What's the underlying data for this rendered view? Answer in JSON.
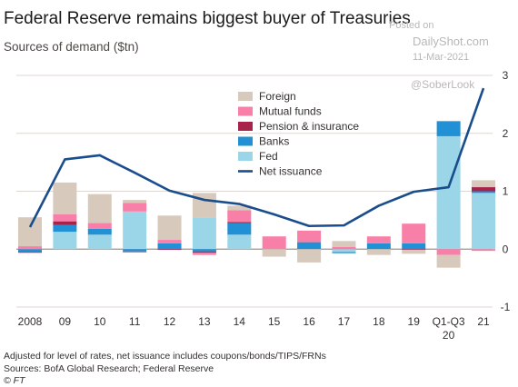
{
  "title": "Federal Reserve remains biggest buyer of Treasuries",
  "subtitle": "Sources of demand ($tn)",
  "watermark": {
    "posted_on": "Posted on",
    "site": "DailyShot.com",
    "date": "11-Mar-2021",
    "handle": "@SoberLook"
  },
  "footnotes": {
    "adjust": "Adjusted for level of rates, net issuance includes coupons/bonds/TIPS/FRNs",
    "sources": "Sources: BofA Global Research; Federal Reserve",
    "credit": "© FT"
  },
  "colors": {
    "Foreign": "#d8c9bd",
    "Mutual funds": "#f77fa8",
    "Pension & insurance": "#a8234c",
    "Banks": "#2190d4",
    "Fed": "#9bd5e8",
    "Net issuance": "#1a4d8c"
  },
  "chart_data": {
    "type": "bar",
    "stacked": true,
    "categories": [
      "2008",
      "09",
      "10",
      "11",
      "12",
      "13",
      "14",
      "15",
      "16",
      "17",
      "18",
      "19",
      "Q1-Q3\n20",
      "21"
    ],
    "tick_labels": [
      [
        "2008"
      ],
      [
        "09"
      ],
      [
        "10"
      ],
      [
        "11"
      ],
      [
        "12"
      ],
      [
        "13"
      ],
      [
        "14"
      ],
      [
        "15"
      ],
      [
        "16"
      ],
      [
        "17"
      ],
      [
        "18"
      ],
      [
        "19"
      ],
      [
        "Q1-Q3",
        "20"
      ],
      [
        "21"
      ]
    ],
    "series": [
      {
        "name": "Fed",
        "values": [
          0,
          0.3,
          0.25,
          0.65,
          0,
          0.55,
          0.25,
          0,
          0,
          -0.05,
          0,
          0,
          1.95,
          0.97
        ]
      },
      {
        "name": "Banks",
        "values": [
          -0.05,
          0.12,
          0.1,
          -0.04,
          0.1,
          -0.04,
          0.2,
          0,
          0.12,
          -0.02,
          0.1,
          0.1,
          0.26,
          0.03
        ]
      },
      {
        "name": "Pension & insurance",
        "values": [
          -0.01,
          0.06,
          0,
          -0.01,
          -0.01,
          -0.02,
          0.02,
          0,
          0,
          0,
          0,
          -0.01,
          0,
          0.07
        ]
      },
      {
        "name": "Mutual funds",
        "values": [
          0.05,
          0.12,
          0.1,
          0.15,
          0.06,
          -0.04,
          0.2,
          0.22,
          0.2,
          0.04,
          0.12,
          0.34,
          -0.1,
          -0.03
        ]
      },
      {
        "name": "Foreign",
        "values": [
          0.5,
          0.55,
          0.5,
          0.05,
          0.42,
          0.42,
          0.08,
          -0.13,
          -0.23,
          0.1,
          -0.1,
          -0.07,
          -0.22,
          0.12
        ]
      }
    ],
    "line": {
      "name": "Net issuance",
      "values": [
        0.38,
        1.55,
        1.62,
        1.32,
        1.01,
        0.85,
        0.78,
        0.6,
        0.4,
        0.41,
        0.75,
        0.99,
        1.07,
        2.78
      ]
    },
    "ylim": [
      -1,
      3
    ],
    "yticks": [
      -1,
      0,
      1,
      2,
      3
    ],
    "legend_position": "top-center",
    "grid": true
  }
}
